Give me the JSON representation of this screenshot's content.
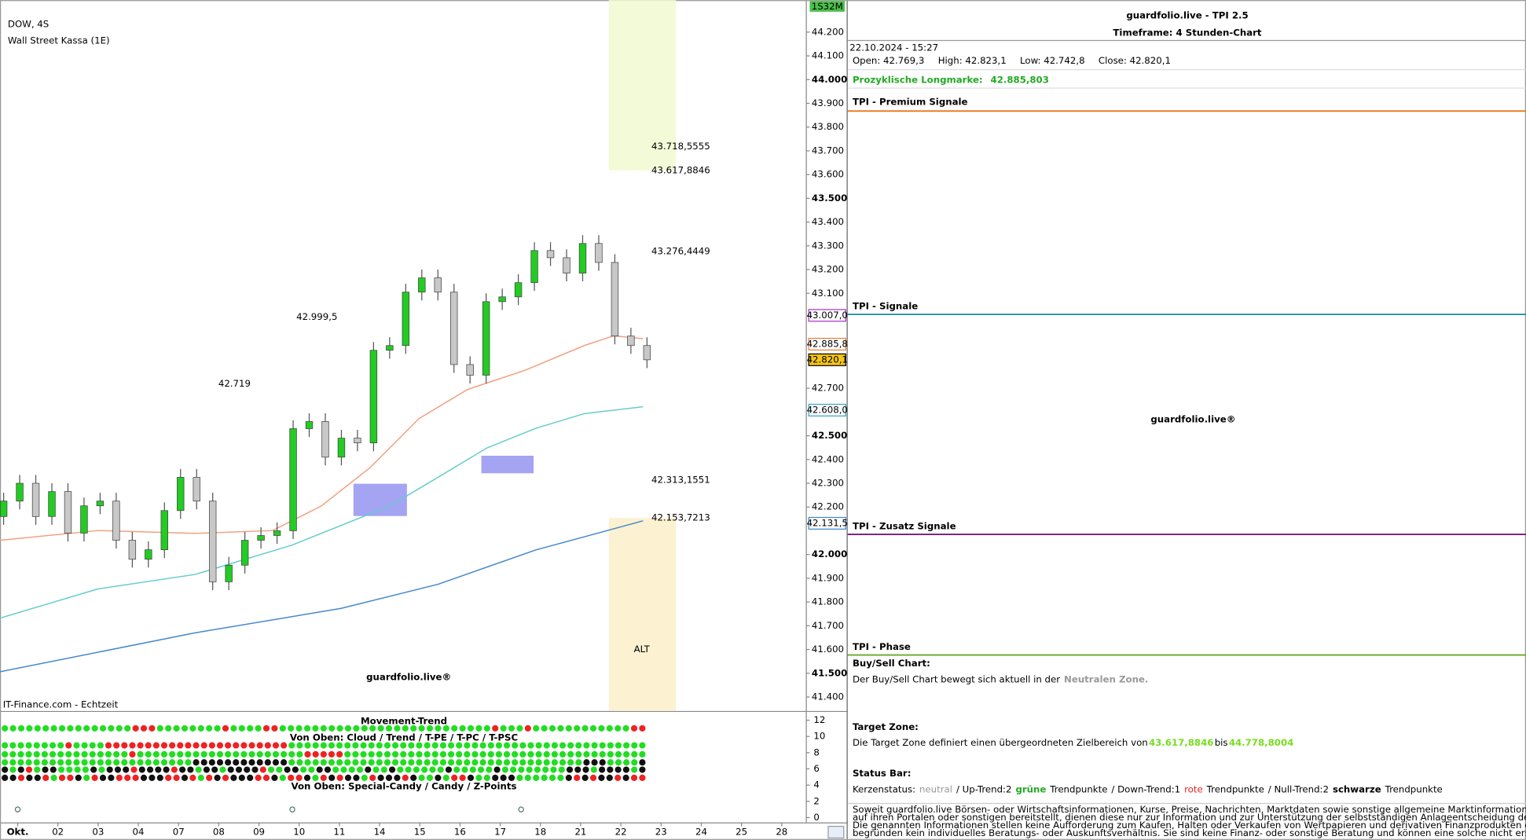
{
  "chart": {
    "type": "candlestick",
    "title": "DOW, 4S",
    "subtitle": "Wall Street Kassa (1E)",
    "source": "IT-Finance.com - Echtzeit",
    "watermark": "guardfolio.live®",
    "countdown": "1S32M",
    "xlim": [
      -0.44,
      19.6
    ],
    "ylim": [
      41343,
      44335
    ],
    "xticks": [
      {
        "value": 0,
        "label": "Okt."
      },
      {
        "value": 1,
        "label": "02"
      },
      {
        "value": 2,
        "label": "03"
      },
      {
        "value": 3,
        "label": "04"
      },
      {
        "value": 4,
        "label": "07"
      },
      {
        "value": 5,
        "label": "08"
      },
      {
        "value": 6,
        "label": "09"
      },
      {
        "value": 7,
        "label": "10"
      },
      {
        "value": 8,
        "label": "11"
      },
      {
        "value": 9,
        "label": "14"
      },
      {
        "value": 10,
        "label": "15"
      },
      {
        "value": 11,
        "label": "16"
      },
      {
        "value": 12,
        "label": "17"
      },
      {
        "value": 13,
        "label": "18"
      },
      {
        "value": 14,
        "label": "21"
      },
      {
        "value": 15,
        "label": "22"
      },
      {
        "value": 16,
        "label": "23"
      },
      {
        "value": 17,
        "label": "24"
      },
      {
        "value": 18,
        "label": "25"
      },
      {
        "value": 19,
        "label": "28"
      }
    ],
    "yticks": [
      {
        "value": 41400,
        "label": "41.400"
      },
      {
        "value": 41500,
        "label": "41.500"
      },
      {
        "value": 41600,
        "label": "41.600"
      },
      {
        "value": 41700,
        "label": "41.700"
      },
      {
        "value": 41800,
        "label": "41.800"
      },
      {
        "value": 41900,
        "label": "41.900"
      },
      {
        "value": 42000,
        "label": "42.000"
      },
      {
        "value": 42200,
        "label": "42.200"
      },
      {
        "value": 42300,
        "label": "42.300"
      },
      {
        "value": 42400,
        "label": "42.400"
      },
      {
        "value": 42500,
        "label": "42.500"
      },
      {
        "value": 42700,
        "label": "42.700"
      },
      {
        "value": 43100,
        "label": "43.100"
      },
      {
        "value": 43200,
        "label": "43.200"
      },
      {
        "value": 43300,
        "label": "43.300"
      },
      {
        "value": 43400,
        "label": "43.400"
      },
      {
        "value": 43500,
        "label": "43.500"
      },
      {
        "value": 43600,
        "label": "43.600"
      },
      {
        "value": 43700,
        "label": "43.700"
      },
      {
        "value": 43800,
        "label": "43.800"
      },
      {
        "value": 43900,
        "label": "43.900"
      },
      {
        "value": 44000,
        "label": "44.000"
      },
      {
        "value": 44100,
        "label": "44.100"
      },
      {
        "value": 44200,
        "label": "44.200"
      }
    ],
    "up_color": "#22cc22",
    "down_color": "#c8c8c8",
    "candles": {
      "x": [
        -0.35,
        0.05,
        0.45,
        0.85,
        1.25,
        1.65,
        2.05,
        2.45,
        2.85,
        3.25,
        3.65,
        4.05,
        4.45,
        4.85,
        5.25,
        5.65,
        6.05,
        6.45,
        6.85,
        7.25,
        7.65,
        8.05,
        8.45,
        8.85,
        9.25,
        9.65,
        10.05,
        10.45,
        10.85,
        11.25,
        11.65,
        12.05,
        12.45,
        12.85,
        13.25,
        13.65,
        14.05,
        14.45,
        14.85,
        15.25,
        15.65
      ],
      "open": [
        42160,
        42225,
        42300,
        42160,
        42265,
        42090,
        42205,
        42225,
        42060,
        41980,
        42020,
        42185,
        42325,
        42225,
        41885,
        41955,
        42060,
        42080,
        42100,
        42530,
        42560,
        42410,
        42490,
        42470,
        42860,
        42880,
        43105,
        43165,
        43105,
        42800,
        42755,
        43065,
        43085,
        43145,
        43280,
        43250,
        43185,
        43310,
        43230,
        42920,
        42880
      ],
      "high": [
        42260,
        42335,
        42335,
        42300,
        42300,
        42240,
        42260,
        42260,
        42095,
        42055,
        42220,
        42360,
        42360,
        42260,
        41990,
        42095,
        42115,
        42135,
        42565,
        42595,
        42595,
        42525,
        42525,
        42895,
        42915,
        43140,
        43200,
        43200,
        43140,
        42835,
        43100,
        43120,
        43180,
        43315,
        43315,
        43285,
        43345,
        43345,
        43265,
        42955,
        42915
      ],
      "low": [
        42125,
        42190,
        42125,
        42125,
        42055,
        42055,
        42170,
        42025,
        41945,
        41945,
        41985,
        42150,
        42190,
        41850,
        41850,
        41920,
        42025,
        42045,
        42065,
        42495,
        42375,
        42375,
        42435,
        42435,
        42825,
        42845,
        43070,
        43070,
        42765,
        42720,
        42720,
        43030,
        43050,
        43110,
        43215,
        43150,
        43150,
        43195,
        42885,
        42845,
        42785
      ],
      "close": [
        42225,
        42300,
        42160,
        42265,
        42090,
        42205,
        42225,
        42060,
        41980,
        42020,
        42185,
        42325,
        42225,
        41885,
        41955,
        42060,
        42080,
        42100,
        42530,
        42560,
        42410,
        42490,
        42470,
        42860,
        42880,
        43105,
        43165,
        43105,
        42800,
        42755,
        43065,
        43085,
        43145,
        43280,
        43250,
        43185,
        43310,
        43230,
        42920,
        42880,
        42820
      ]
    },
    "lines": [
      {
        "color": "#f0a080",
        "x": [
          -0.44,
          1.99,
          4.41,
          6.34,
          7.55,
          8.77,
          9.98,
          11.19,
          12.64,
          14.09,
          14.82,
          15.55
        ],
        "values": [
          42060,
          42101,
          42089,
          42101,
          42204,
          42367,
          42572,
          42695,
          42777,
          42880,
          42921,
          42909
        ]
      },
      {
        "color": "#66cccc",
        "x": [
          -0.44,
          1.99,
          4.41,
          6.83,
          9.25,
          10.46,
          11.67,
          12.88,
          14.09,
          15.55
        ],
        "values": [
          41732,
          41855,
          41916,
          42040,
          42204,
          42326,
          42449,
          42531,
          42593,
          42622
        ]
      },
      {
        "color": "#4488cc",
        "x": [
          -0.44,
          4.41,
          8.04,
          10.46,
          12.88,
          15.55
        ],
        "values": [
          41506,
          41670,
          41773,
          41875,
          42019,
          42142
        ]
      }
    ],
    "zones": [
      {
        "x": [
          14.7,
          16.37
        ],
        "y": [
          43618,
          44335
        ],
        "color": "#f2fad4"
      },
      {
        "x": [
          14.7,
          16.37
        ],
        "y": [
          41343,
          42154
        ],
        "color": "#fcefcc"
      },
      {
        "x": [
          8.35,
          9.68
        ],
        "y": [
          42162,
          42298
        ],
        "color": "#9a9af2"
      },
      {
        "x": [
          11.53,
          12.83
        ],
        "y": [
          42342,
          42416
        ],
        "color": "#9a9af2"
      }
    ],
    "zone_label": {
      "text": "ALT",
      "x": 15.52,
      "y": 41600
    },
    "price_markers": [
      {
        "label": "43.007,0",
        "value": 43007.0,
        "color": "#aa33cc",
        "fill": "#ffffff"
      },
      {
        "label": "42.885,8",
        "value": 42885.8,
        "color": "#e8803a",
        "fill": "#ffffff"
      },
      {
        "label": "42.820,1",
        "value": 42820.1,
        "color": "#000000",
        "fill": "#f5c518"
      },
      {
        "label": "42.608,0",
        "value": 42608.0,
        "color": "#33aabb",
        "fill": "#ffffff"
      },
      {
        "label": "42.131,5",
        "value": 42131.5,
        "color": "#4488cc",
        "fill": "#ffffff"
      }
    ],
    "projections": [
      {
        "label": "43.718,5555",
        "value": 43718.5555,
        "x": 15.76,
        "color": "#999999"
      },
      {
        "label": "43.617,8846",
        "value": 43617.8846,
        "x": 15.76,
        "color": "#999999"
      },
      {
        "label": "43.276,4449",
        "value": 43276.4449,
        "x": 15.76,
        "color": "#dd66dd"
      },
      {
        "label": "42.313,1551",
        "value": 42313.1551,
        "x": 15.76,
        "color": "#dd66dd"
      },
      {
        "label": "42.153,7213",
        "value": 42153.7213,
        "x": 15.76,
        "color": "#999999"
      },
      {
        "label": "42.999,5",
        "value": 42999.5,
        "x": 6.93,
        "color": "#c8c8c8"
      },
      {
        "label": "42.719",
        "value": 42719,
        "x": 4.99,
        "color": "#c8c8c8"
      }
    ],
    "indicator": {
      "title": "Movement-Trend",
      "subtitle_top": "Von Oben: Cloud / Trend / T-PE / T-PC / T-PSC",
      "subtitle_bottom": "Von Oben: Special-Candy / Candy / Z-Points",
      "ylim": [
        -0.6,
        12.84
      ],
      "yticks": [
        0,
        2,
        4,
        6,
        8,
        10,
        12
      ],
      "colors": {
        "g": "#22dd22",
        "r": "#ee2222",
        "k": "#111111"
      },
      "rows": [
        {
          "y": 11,
          "states": "ggggggggggggggggrrrggggggggrggggrrggggggggggggggggggggggggggrgggrggggggggggggrr"
        },
        {
          "y": 8.9,
          "states": "ggggggggrggggrrrrrrrrrrrrrrrrrrrrrrrggggggggggggggggggggggggggggggggggggggggggggg"
        },
        {
          "y": 7.8,
          "states": "ggggggggggggggggrgggggggggggggggggggggrrrrrgggggggggggggggggggggggggggggggggggggg"
        },
        {
          "y": 6.8,
          "states": "ggggggggggggggggggggggggkkkkkkkkkkkkgggggggggggggggggggggggggggggggggggggkkkggggk"
        },
        {
          "y": 5.9,
          "states": "kgkrgkkggggkgkkkrkkkkrkkgkkgkkkkrggkkggkkggggkggkggggggkgggggkggggggggkkkgkkkkgk"
        },
        {
          "y": 4.9,
          "states": "kkrkkrgrrkgrkkrrrkkkrrkrgrkrkkkrrkgrrkgrkrkkgrkkkrkggkgrrkggkkkggggggkrkrkkrkrr"
        }
      ],
      "z_points": {
        "y": 1,
        "x": [
          0,
          6.83,
          12.52
        ]
      }
    }
  },
  "panel": {
    "title": "guardfolio.live - TPI 2.5",
    "timeframe": "Timeframe: 4 Stunden-Chart",
    "timestamp": "22.10.2024 - 15:27",
    "ohlc": [
      "Open: 42.769,3",
      "High: 42.823,1",
      "Low: 42.742,8",
      "Close: 42.820,1"
    ],
    "longmark": [
      "Prozyklische Longmarke:",
      "42.885,803"
    ],
    "sections": [
      {
        "label": "TPI - Premium Signale",
        "color": "#e87511"
      },
      {
        "label": "TPI - Signale",
        "color": "#1a8aa8"
      },
      {
        "label": "TPI - Zusatz Signale",
        "color": "#7a1a7a"
      },
      {
        "label": "TPI - Phase",
        "color": "#66aa22"
      }
    ],
    "watermark": "guardfolio.live®",
    "buy_sell": {
      "heading": "Buy/Sell Chart:",
      "parts": [
        {
          "text": "Der Buy/Sell Chart bewegt sich aktuell in der"
        },
        {
          "text": "Neutralen Zone.",
          "color": "#999999",
          "bold": true
        }
      ]
    },
    "target": {
      "heading": "Target Zone:",
      "parts": [
        {
          "text": "Die Target Zone definiert einen übergeordneten Zielbereich von"
        },
        {
          "text": "43.617,8846",
          "color": "#77dd22",
          "bold": true
        },
        {
          "text": "bis"
        },
        {
          "text": "44.778,8004",
          "color": "#77dd22",
          "bold": true
        }
      ]
    },
    "status": {
      "heading": "Status Bar:",
      "parts": [
        {
          "text": "Kerzenstatus:"
        },
        {
          "text": "neutral",
          "color": "#999999"
        },
        {
          "text": "/ Up-Trend:2"
        },
        {
          "text": "grüne",
          "color": "#22aa22",
          "bold": true
        },
        {
          "text": "Trendpunkte"
        },
        {
          "text": "/ Down-Trend:1"
        },
        {
          "text": "rote",
          "color": "#dd2222"
        },
        {
          "text": "Trendpunkte"
        },
        {
          "text": "/ Null-Trend:2"
        },
        {
          "text": "schwarze",
          "bold": true
        },
        {
          "text": "Trendpunkte"
        }
      ]
    },
    "disclaimer": [
      "Soweit guardfolio.live Börsen- oder Wirtschaftsinformationen, Kurse, Preise, Nachrichten, Marktdaten sowie sonstige allgemeine Marktinformationen",
      "auf ihren Portalen oder sonstigen bereitstellt, dienen diese nur zur Information und zur Unterstützung der selbstständigen Anlageentscheidung des Nutzers.",
      "Die genannten Informationen stellen keine Aufforderung zum Kaufen, Halten oder Verkaufen von Wertpapieren und derivativen Finanzprodukten dar und",
      "begründen kein individuelles Beratungs- oder Auskunftsverhältnis. Sie sind keine Finanz- oder sonstige Beratung und können eine solche nicht ersetzen."
    ]
  }
}
